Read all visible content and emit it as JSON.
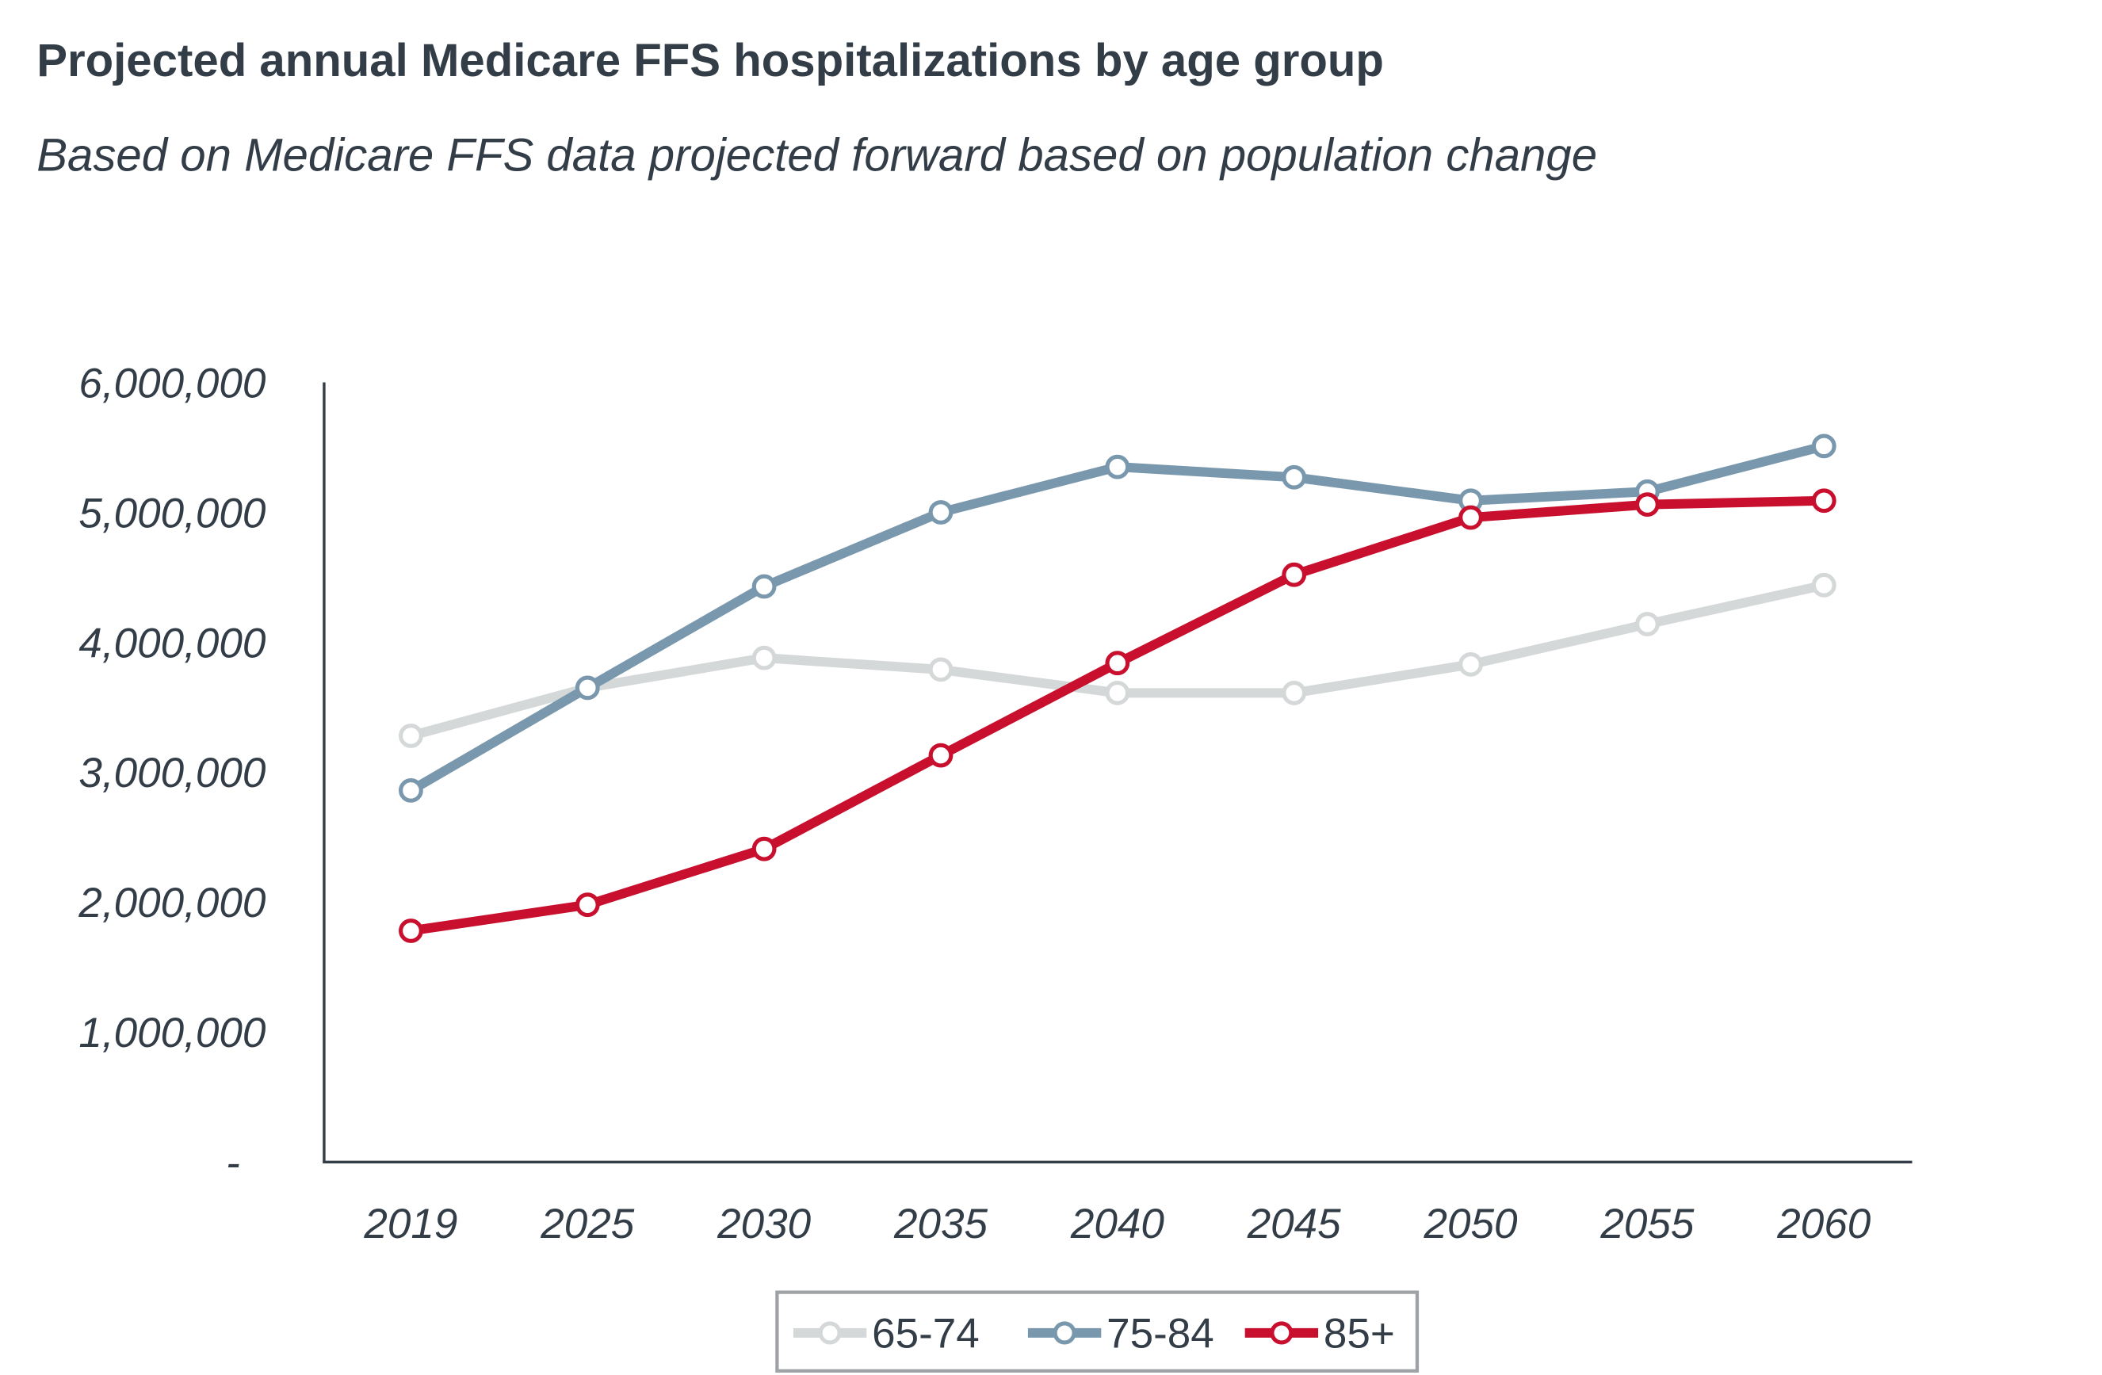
{
  "chart_data": {
    "type": "line",
    "title": "Projected annual Medicare FFS hospitalizations by age group",
    "subtitle": "Based on Medicare FFS data projected forward based on population change",
    "xlabel": "",
    "ylabel": "",
    "ylim": [
      0,
      6000000
    ],
    "grid": false,
    "legend_position": "bottom",
    "categories": [
      "2019",
      "2025",
      "2030",
      "2035",
      "2040",
      "2045",
      "2050",
      "2055",
      "2060"
    ],
    "y_ticks": [
      0,
      1000000,
      2000000,
      3000000,
      4000000,
      5000000,
      6000000
    ],
    "y_tick_labels": [
      "-",
      "1,000,000",
      "2,000,000",
      "3,000,000",
      "4,000,000",
      "5,000,000",
      "6,000,000"
    ],
    "series": [
      {
        "name": "65-74",
        "color": "#d5d8d8",
        "values": [
          3280000,
          3650000,
          3880000,
          3790000,
          3610000,
          3610000,
          3830000,
          4140000,
          4440000
        ]
      },
      {
        "name": "75-84",
        "color": "#7a98ad",
        "values": [
          2860000,
          3650000,
          4430000,
          5000000,
          5350000,
          5270000,
          5090000,
          5160000,
          5510000
        ]
      },
      {
        "name": "85+",
        "color": "#c8102e",
        "values": [
          1780000,
          1980000,
          2410000,
          3130000,
          3840000,
          4520000,
          4960000,
          5060000,
          5090000
        ]
      }
    ]
  }
}
